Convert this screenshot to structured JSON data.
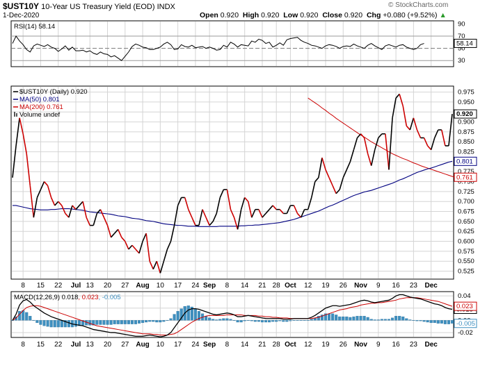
{
  "header": {
    "symbol": "$UST10Y",
    "description": "10-Year US Treasury Yield (EOD)",
    "exchange": "INDX",
    "date": "1-Dec-2020",
    "ohlc": {
      "open_label": "Open",
      "open": "0.920",
      "high_label": "High",
      "high": "0.920",
      "low_label": "Low",
      "low": "0.920",
      "close_label": "Close",
      "close": "0.920",
      "chg_label": "Chg",
      "chg": "+0.080 (+9.52%)",
      "chg_arrow": "▲"
    },
    "watermark": "© StockCharts.com"
  },
  "colors": {
    "price": "#000000",
    "down": "#cc0000",
    "ma50": "#000080",
    "ma200": "#cc0000",
    "macd_hist": "#3e8fbf",
    "grid": "#d4d4d4"
  },
  "chart_data": [
    {
      "type": "line",
      "panel": "rsi",
      "title": "RSI(14) 58.14",
      "legend": "RSI(14) 58.14",
      "last_value": "58.14",
      "ylim": [
        20,
        95
      ],
      "yticks": [
        "90",
        "70",
        "50",
        "30"
      ],
      "ref_lines": [
        70,
        50,
        30
      ],
      "series": [
        {
          "name": "RSI(14)",
          "values": [
            58,
            70,
            62,
            56,
            48,
            44,
            54,
            57,
            55,
            53,
            56,
            52,
            50,
            45,
            49,
            54,
            47,
            52,
            46,
            46,
            47,
            44,
            46,
            42,
            40,
            44,
            41,
            40,
            36,
            38,
            34,
            30,
            37,
            44,
            53,
            57,
            55,
            52,
            51,
            48,
            48,
            50,
            52,
            57,
            60,
            56,
            48,
            49,
            56,
            53,
            52,
            55,
            51,
            52,
            53,
            50,
            52,
            50,
            47,
            48,
            55,
            52,
            60,
            57,
            52,
            56,
            55,
            54,
            62,
            60,
            65,
            63,
            58,
            60,
            52,
            55,
            59,
            55,
            64,
            66,
            67,
            68,
            63,
            60,
            58,
            55,
            54,
            52,
            50,
            54,
            56,
            55,
            53,
            50,
            53,
            54,
            53,
            57,
            54,
            52,
            50,
            55,
            58,
            54,
            51,
            48,
            54,
            56,
            54,
            52,
            55,
            56,
            52,
            50,
            48,
            50,
            56,
            58
          ]
        }
      ]
    },
    {
      "type": "line",
      "panel": "price",
      "title": "$UST10Y (Daily) 0.920",
      "ylim": [
        0.505,
        0.99
      ],
      "yticks": [
        "0.975",
        "0.950",
        "0.925",
        "0.900",
        "0.875",
        "0.850",
        "0.825",
        "0.800",
        "0.775",
        "0.750",
        "0.725",
        "0.700",
        "0.675",
        "0.650",
        "0.625",
        "0.600",
        "0.575",
        "0.550",
        "0.525"
      ],
      "x_labels": [
        "8",
        "15",
        "22",
        "Jul",
        "13",
        "20",
        "27",
        "Aug",
        "10",
        "17",
        "24",
        "Sep",
        "8",
        "14",
        "21",
        "28",
        "Oct",
        "12",
        "19",
        "26",
        "Nov",
        "9",
        "16",
        "23",
        "Dec"
      ],
      "legend": [
        "$UST10Y (Daily) 0.920",
        "MA(50) 0.801",
        "MA(200) 0.761",
        "Volume undef"
      ],
      "series": [
        {
          "name": "$UST10Y",
          "values": [
            0.76,
            0.84,
            0.91,
            0.87,
            0.82,
            0.74,
            0.66,
            0.71,
            0.73,
            0.75,
            0.74,
            0.71,
            0.69,
            0.7,
            0.69,
            0.67,
            0.66,
            0.69,
            0.68,
            0.69,
            0.7,
            0.66,
            0.64,
            0.64,
            0.67,
            0.68,
            0.66,
            0.64,
            0.61,
            0.62,
            0.63,
            0.61,
            0.6,
            0.58,
            0.59,
            0.58,
            0.57,
            0.6,
            0.62,
            0.55,
            0.53,
            0.55,
            0.52,
            0.55,
            0.58,
            0.6,
            0.64,
            0.69,
            0.71,
            0.71,
            0.68,
            0.66,
            0.64,
            0.64,
            0.68,
            0.66,
            0.64,
            0.65,
            0.67,
            0.71,
            0.73,
            0.73,
            0.68,
            0.66,
            0.63,
            0.68,
            0.71,
            0.7,
            0.66,
            0.68,
            0.68,
            0.66,
            0.67,
            0.68,
            0.69,
            0.68,
            0.68,
            0.67,
            0.67,
            0.69,
            0.69,
            0.67,
            0.66,
            0.68,
            0.68,
            0.71,
            0.75,
            0.76,
            0.81,
            0.78,
            0.76,
            0.74,
            0.72,
            0.73,
            0.76,
            0.78,
            0.8,
            0.83,
            0.86,
            0.87,
            0.86,
            0.82,
            0.79,
            0.83,
            0.86,
            0.87,
            0.87,
            0.78,
            0.91,
            0.96,
            0.97,
            0.94,
            0.89,
            0.88,
            0.91,
            0.88,
            0.86,
            0.86,
            0.84,
            0.83,
            0.86,
            0.88,
            0.88,
            0.84,
            0.84,
            0.92
          ]
        },
        {
          "name": "MA(50)",
          "values": [
            0.69,
            0.69,
            0.688,
            0.686,
            0.684,
            0.682,
            0.681,
            0.68,
            0.679,
            0.679,
            0.679,
            0.68,
            0.68,
            0.681,
            0.682,
            0.682,
            0.682,
            0.681,
            0.68,
            0.679,
            0.678,
            0.676,
            0.674,
            0.673,
            0.672,
            0.671,
            0.67,
            0.669,
            0.668,
            0.666,
            0.664,
            0.663,
            0.662,
            0.66,
            0.658,
            0.657,
            0.656,
            0.654,
            0.652,
            0.651,
            0.65,
            0.648,
            0.646,
            0.644,
            0.643,
            0.642,
            0.641,
            0.64,
            0.64,
            0.639,
            0.638,
            0.638,
            0.638,
            0.637,
            0.637,
            0.637,
            0.637,
            0.637,
            0.637,
            0.638,
            0.638,
            0.638,
            0.638,
            0.638,
            0.638,
            0.639,
            0.639,
            0.64,
            0.64,
            0.641,
            0.641,
            0.642,
            0.643,
            0.644,
            0.645,
            0.646,
            0.647,
            0.649,
            0.651,
            0.653,
            0.655,
            0.658,
            0.661,
            0.664,
            0.667,
            0.67,
            0.673,
            0.676,
            0.68,
            0.684,
            0.688,
            0.691,
            0.695,
            0.699,
            0.703,
            0.707,
            0.711,
            0.715,
            0.718,
            0.721,
            0.724,
            0.726,
            0.728,
            0.731,
            0.734,
            0.737,
            0.74,
            0.743,
            0.746,
            0.75,
            0.754,
            0.757,
            0.761,
            0.765,
            0.769,
            0.773,
            0.776,
            0.779,
            0.782,
            0.784,
            0.787,
            0.79,
            0.793,
            0.796,
            0.799,
            0.801
          ]
        },
        {
          "name": "MA(200)",
          "start_index": 84,
          "values": [
            0.96,
            0.954,
            0.948,
            0.942,
            0.935,
            0.929,
            0.922,
            0.916,
            0.909,
            0.903,
            0.897,
            0.891,
            0.885,
            0.879,
            0.873,
            0.867,
            0.862,
            0.856,
            0.85,
            0.845,
            0.84,
            0.835,
            0.83,
            0.825,
            0.82,
            0.816,
            0.812,
            0.808,
            0.805,
            0.801,
            0.797,
            0.794,
            0.79,
            0.787,
            0.784,
            0.781,
            0.778,
            0.775,
            0.772,
            0.769,
            0.766,
            0.763,
            0.761
          ]
        }
      ],
      "last_labels": {
        "price": "0.920",
        "ma50": "0.801",
        "ma200": "0.761"
      }
    },
    {
      "type": "line",
      "panel": "macd",
      "title": "MACD(12,26,9) 0.018, 0.023, -0.005",
      "legend": [
        "MACD(12,26,9) 0.018",
        "0.023",
        "-0.005"
      ],
      "ylim": [
        -0.028,
        0.047
      ],
      "yticks": [
        "0.04",
        "0.02",
        "0.00",
        "-0.02"
      ],
      "last_labels": {
        "macd": "0.018",
        "signal": "0.023",
        "hist": "-0.005"
      },
      "series": [
        {
          "name": "MACD",
          "values": [
            0.0,
            0.01,
            0.025,
            0.032,
            0.034,
            0.03,
            0.024,
            0.02,
            0.016,
            0.012,
            0.009,
            0.006,
            0.004,
            0.002,
            0.0,
            -0.002,
            -0.004,
            -0.006,
            -0.007,
            -0.008,
            -0.009,
            -0.011,
            -0.013,
            -0.015,
            -0.016,
            -0.017,
            -0.018,
            -0.019,
            -0.02,
            -0.02,
            -0.021,
            -0.022,
            -0.023,
            -0.024,
            -0.025,
            -0.026,
            -0.026,
            -0.026,
            -0.025,
            -0.024,
            -0.025,
            -0.026,
            -0.027,
            -0.026,
            -0.024,
            -0.02,
            -0.012,
            -0.004,
            0.004,
            0.012,
            0.017,
            0.019,
            0.019,
            0.018,
            0.016,
            0.014,
            0.012,
            0.01,
            0.009,
            0.01,
            0.011,
            0.012,
            0.011,
            0.009,
            0.006,
            0.006,
            0.007,
            0.008,
            0.007,
            0.006,
            0.005,
            0.004,
            0.003,
            0.003,
            0.003,
            0.003,
            0.003,
            0.002,
            0.002,
            0.002,
            0.003,
            0.003,
            0.003,
            0.003,
            0.003,
            0.005,
            0.008,
            0.012,
            0.016,
            0.02,
            0.022,
            0.024,
            0.024,
            0.023,
            0.024,
            0.025,
            0.026,
            0.028,
            0.03,
            0.032,
            0.033,
            0.032,
            0.03,
            0.029,
            0.03,
            0.031,
            0.032,
            0.033,
            0.036,
            0.04,
            0.042,
            0.042,
            0.04,
            0.038,
            0.037,
            0.036,
            0.035,
            0.033,
            0.031,
            0.029,
            0.027,
            0.026,
            0.024,
            0.021,
            0.019,
            0.018
          ]
        },
        {
          "name": "Signal",
          "values": [
            0.0,
            0.004,
            0.01,
            0.016,
            0.021,
            0.023,
            0.024,
            0.024,
            0.023,
            0.021,
            0.019,
            0.017,
            0.015,
            0.013,
            0.011,
            0.009,
            0.007,
            0.005,
            0.003,
            0.001,
            -0.001,
            -0.003,
            -0.005,
            -0.007,
            -0.009,
            -0.01,
            -0.011,
            -0.012,
            -0.013,
            -0.014,
            -0.015,
            -0.016,
            -0.017,
            -0.018,
            -0.019,
            -0.02,
            -0.021,
            -0.022,
            -0.022,
            -0.022,
            -0.023,
            -0.023,
            -0.024,
            -0.024,
            -0.024,
            -0.023,
            -0.022,
            -0.019,
            -0.015,
            -0.011,
            -0.007,
            -0.003,
            0.0,
            0.003,
            0.005,
            0.007,
            0.008,
            0.008,
            0.008,
            0.008,
            0.008,
            0.009,
            0.009,
            0.009,
            0.009,
            0.009,
            0.008,
            0.008,
            0.008,
            0.008,
            0.007,
            0.007,
            0.006,
            0.006,
            0.005,
            0.005,
            0.004,
            0.004,
            0.004,
            0.003,
            0.003,
            0.003,
            0.003,
            0.003,
            0.003,
            0.003,
            0.004,
            0.005,
            0.007,
            0.009,
            0.011,
            0.013,
            0.015,
            0.017,
            0.018,
            0.019,
            0.021,
            0.022,
            0.023,
            0.025,
            0.026,
            0.027,
            0.028,
            0.028,
            0.029,
            0.029,
            0.03,
            0.031,
            0.032,
            0.033,
            0.035,
            0.036,
            0.037,
            0.037,
            0.037,
            0.037,
            0.036,
            0.035,
            0.034,
            0.033,
            0.032,
            0.031,
            0.029,
            0.027,
            0.025,
            0.023
          ]
        },
        {
          "name": "Histogram",
          "values": [
            0.0,
            0.006,
            0.015,
            0.016,
            0.013,
            0.007,
            0.0,
            -0.004,
            -0.007,
            -0.009,
            -0.01,
            -0.011,
            -0.011,
            -0.011,
            -0.011,
            -0.011,
            -0.011,
            -0.011,
            -0.01,
            -0.009,
            -0.008,
            -0.008,
            -0.008,
            -0.008,
            -0.007,
            -0.007,
            -0.007,
            -0.007,
            -0.007,
            -0.006,
            -0.006,
            -0.006,
            -0.006,
            -0.006,
            -0.006,
            -0.006,
            -0.005,
            -0.004,
            -0.003,
            -0.002,
            -0.002,
            -0.003,
            -0.003,
            -0.002,
            0.0,
            0.003,
            0.01,
            0.015,
            0.019,
            0.023,
            0.024,
            0.022,
            0.019,
            0.015,
            0.011,
            0.007,
            0.004,
            0.002,
            0.001,
            0.002,
            0.003,
            0.003,
            0.002,
            0.0,
            -0.003,
            -0.003,
            -0.001,
            0.0,
            -0.001,
            -0.002,
            -0.002,
            -0.003,
            -0.003,
            -0.003,
            -0.002,
            -0.002,
            -0.001,
            -0.002,
            -0.002,
            -0.001,
            0.0,
            0.0,
            0.0,
            0.0,
            0.0,
            0.002,
            0.004,
            0.007,
            0.009,
            0.011,
            0.011,
            0.011,
            0.009,
            0.006,
            0.006,
            0.006,
            0.005,
            0.006,
            0.007,
            0.007,
            0.007,
            0.005,
            0.002,
            0.001,
            0.001,
            0.002,
            0.002,
            0.002,
            0.004,
            0.007,
            0.007,
            0.006,
            0.003,
            0.001,
            0.0,
            -0.001,
            -0.001,
            -0.002,
            -0.003,
            -0.004,
            -0.004,
            -0.005,
            -0.005,
            -0.006,
            -0.006,
            -0.005
          ]
        }
      ]
    }
  ]
}
